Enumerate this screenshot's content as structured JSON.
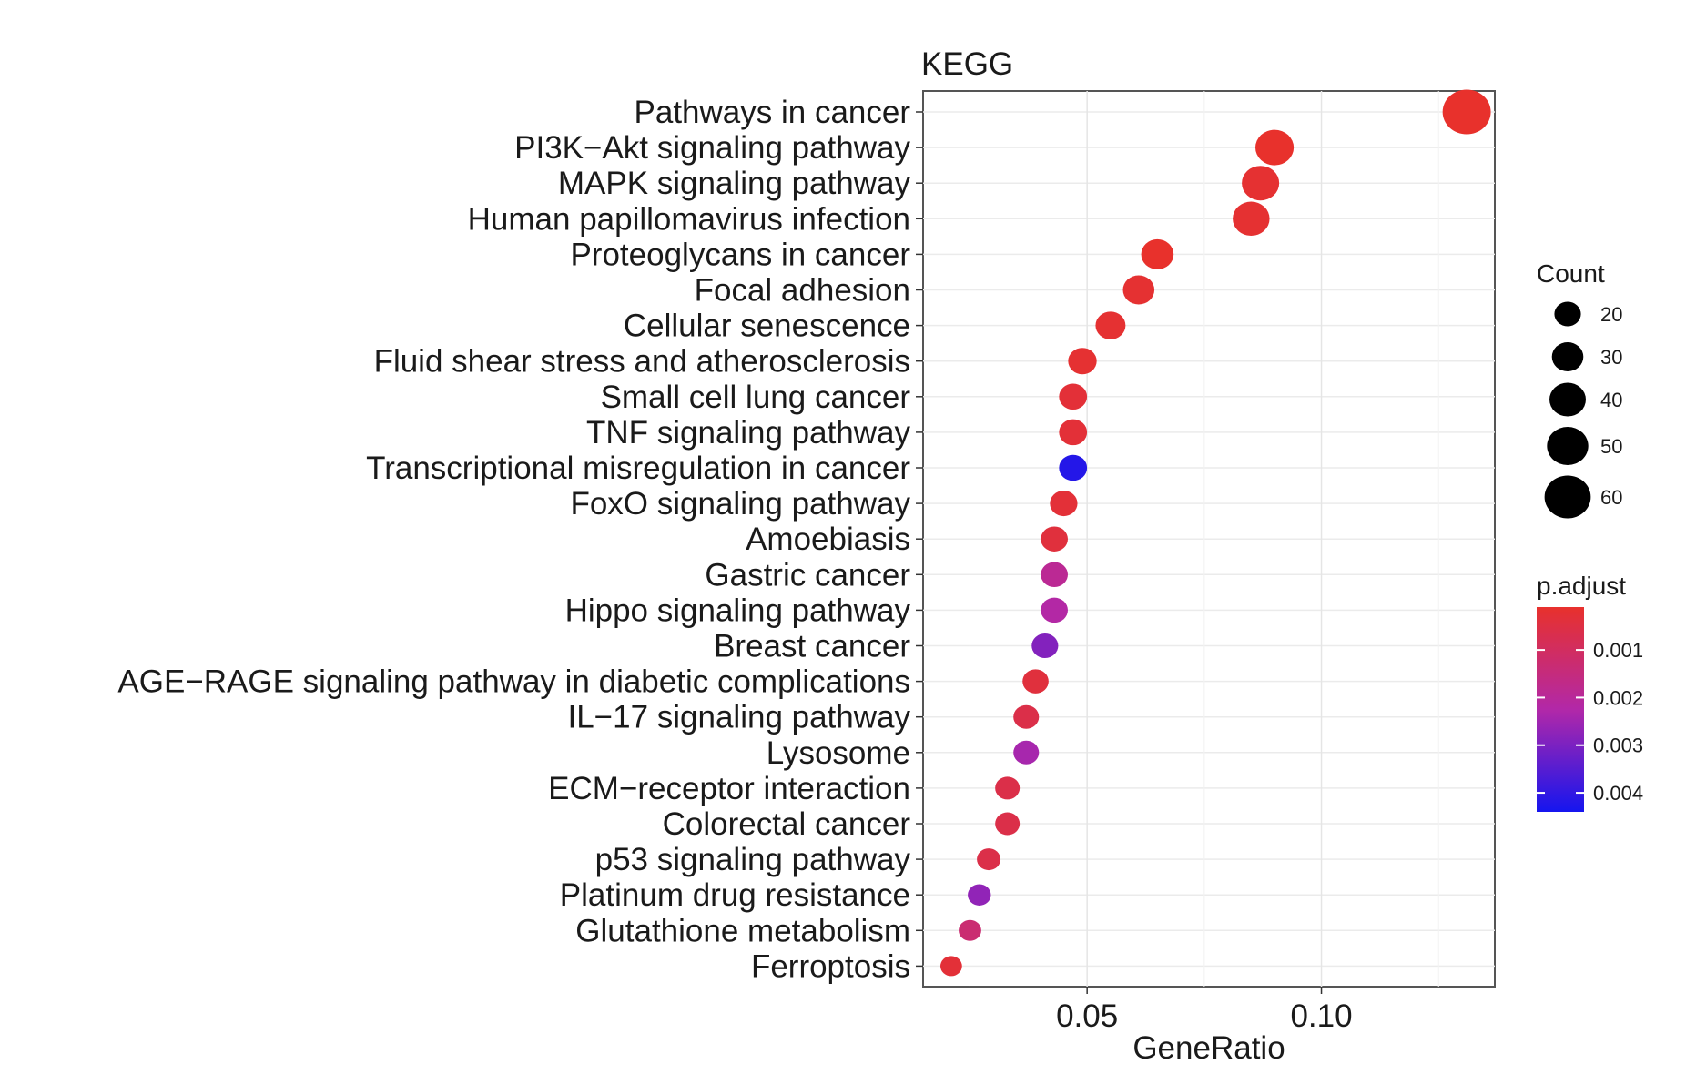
{
  "chart_data": {
    "type": "scatter",
    "title": "KEGG",
    "xlabel": "GeneRatio",
    "ylabel": "",
    "xlim": [
      0.015,
      0.137
    ],
    "xticks": [
      0.05,
      0.1
    ],
    "xtick_labels": [
      "0.05",
      "0.10"
    ],
    "grid": true,
    "legend_placement": "right",
    "categories": [
      "Pathways in cancer",
      "PI3K−Akt signaling pathway",
      "MAPK signaling pathway",
      "Human papillomavirus infection",
      "Proteoglycans in cancer",
      "Focal adhesion",
      "Cellular senescence",
      "Fluid shear stress and atherosclerosis",
      "Small cell lung cancer",
      "TNF signaling pathway",
      "Transcriptional misregulation in cancer",
      "FoxO signaling pathway",
      "Amoebiasis",
      "Gastric cancer",
      "Hippo signaling pathway",
      "Breast cancer",
      "AGE−RAGE signaling pathway in diabetic complications",
      "IL−17 signaling pathway",
      "Lysosome",
      "ECM−receptor interaction",
      "Colorectal cancer",
      "p53 signaling pathway",
      "Platinum drug resistance",
      "Glutathione metabolism",
      "Ferroptosis"
    ],
    "gene_ratio": [
      0.131,
      0.09,
      0.087,
      0.085,
      0.065,
      0.061,
      0.055,
      0.049,
      0.047,
      0.047,
      0.047,
      0.045,
      0.043,
      0.043,
      0.043,
      0.041,
      0.039,
      0.037,
      0.037,
      0.033,
      0.033,
      0.029,
      0.027,
      0.025,
      0.021
    ],
    "count": [
      64,
      44,
      42,
      41,
      32,
      30,
      27,
      24,
      23,
      23,
      23,
      22,
      21,
      21,
      21,
      20,
      19,
      18,
      18,
      16,
      16,
      14,
      13,
      12,
      10
    ],
    "p_adjust": [
      0.0001,
      0.0001,
      0.0002,
      0.0002,
      0.0001,
      0.0002,
      0.0002,
      0.0002,
      0.0003,
      0.0003,
      0.0042,
      0.0003,
      0.0004,
      0.0019,
      0.0022,
      0.0029,
      0.0004,
      0.0006,
      0.0024,
      0.0006,
      0.0006,
      0.0006,
      0.0027,
      0.0013,
      0.0003
    ],
    "size_legend": {
      "title": "Count",
      "values": [
        20,
        30,
        40,
        50,
        60
      ],
      "labels": [
        "20",
        "30",
        "40",
        "50",
        "60"
      ]
    },
    "color_legend": {
      "title": "p.adjust",
      "range": [
        0.0001,
        0.0044
      ],
      "ticks": [
        0.001,
        0.002,
        0.003,
        0.004
      ],
      "tick_labels": [
        "0.001",
        "0.002",
        "0.003",
        "0.004"
      ],
      "low_color": "#e8312c",
      "mid_color": "#b228a8",
      "high_color": "#1515ef"
    }
  }
}
